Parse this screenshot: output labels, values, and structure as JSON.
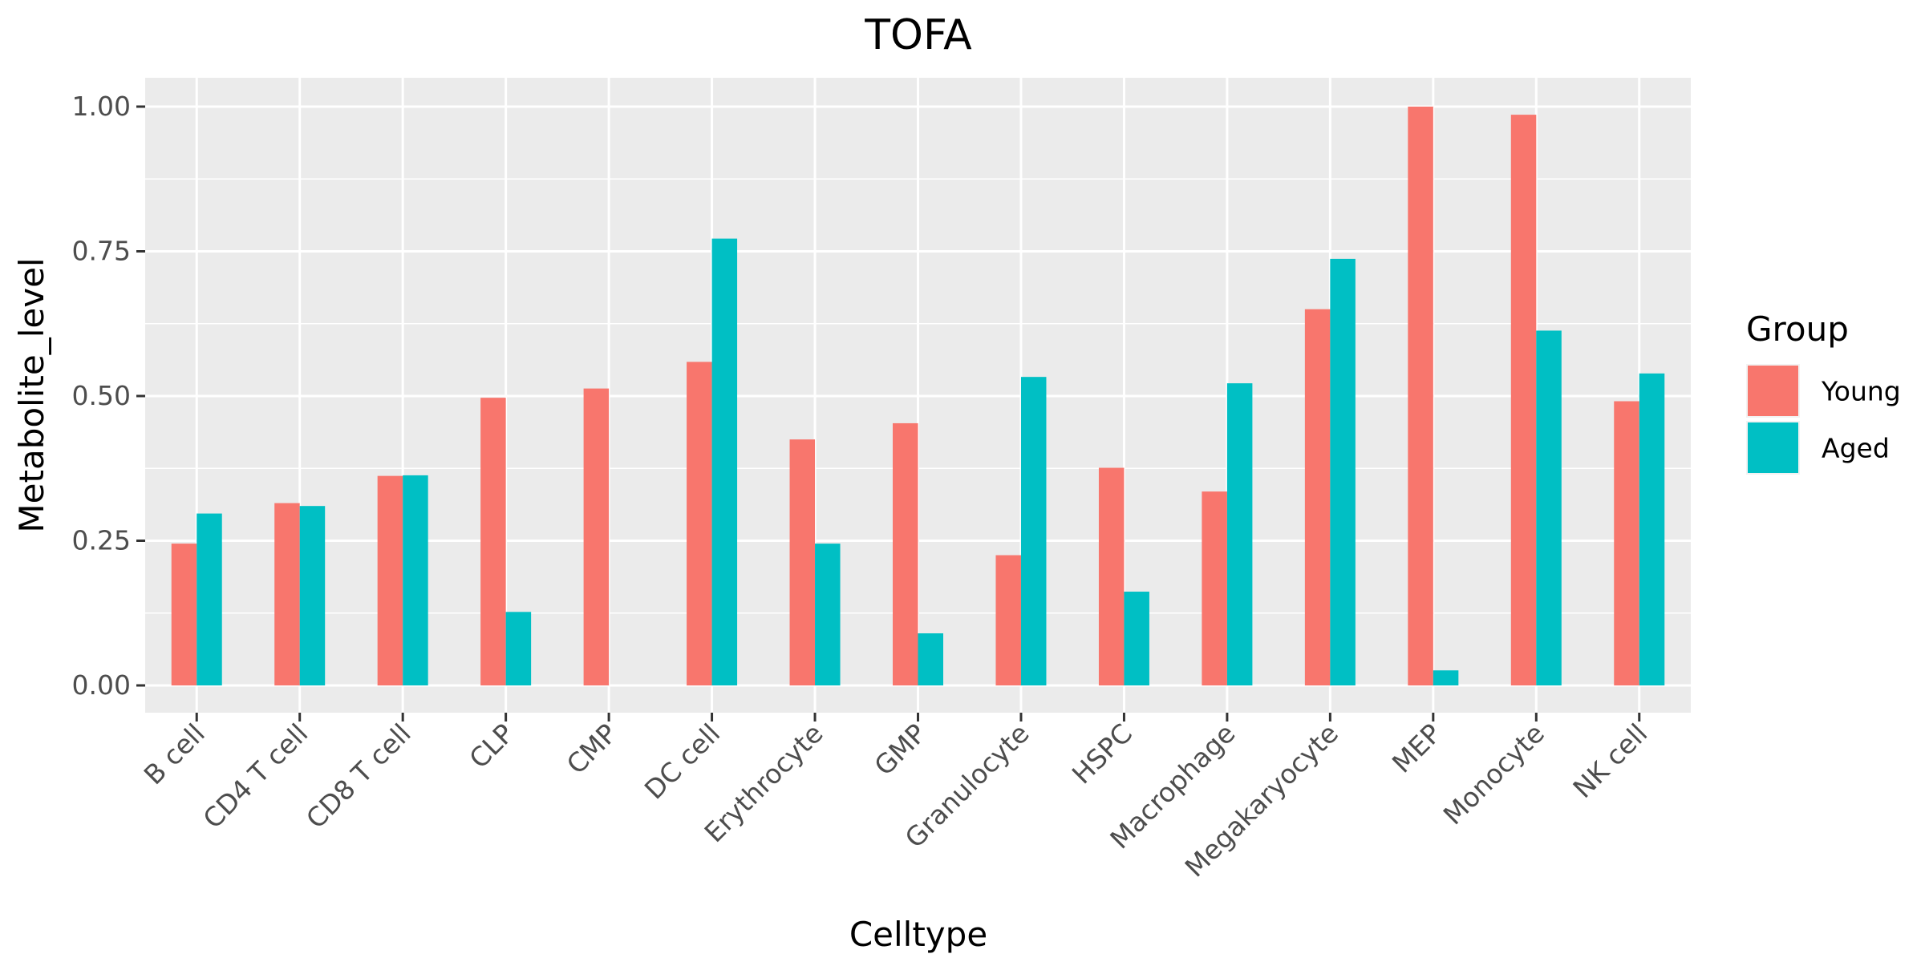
{
  "chart_data": {
    "type": "bar",
    "title": "TOFA",
    "xlabel": "Celltype",
    "ylabel": "Metabolite_level",
    "ylim": [
      -0.05,
      1.05
    ],
    "yticks": [
      "0.00",
      "0.25",
      "0.50",
      "0.75",
      "1.00"
    ],
    "ytick_values": [
      0,
      0.25,
      0.5,
      0.75,
      1.0
    ],
    "grid": true,
    "legend": {
      "title": "Group",
      "position": "right"
    },
    "categories": [
      "B cell",
      "CD4 T cell",
      "CD8 T cell",
      "CLP",
      "CMP",
      "DC cell",
      "Erythrocyte",
      "GMP",
      "Granulocyte",
      "HSPC",
      "Macrophage",
      "Megakaryocyte",
      "MEP",
      "Monocyte",
      "NK cell"
    ],
    "series": [
      {
        "name": "Young",
        "color": "#F8766D",
        "values": [
          0.245,
          0.315,
          0.362,
          0.497,
          0.513,
          0.559,
          0.425,
          0.453,
          0.225,
          0.376,
          0.335,
          0.65,
          1.0,
          0.986,
          0.491
        ]
      },
      {
        "name": "Aged",
        "color": "#00BFC4",
        "values": [
          0.297,
          0.31,
          0.363,
          0.127,
          0.0,
          0.772,
          0.245,
          0.09,
          0.533,
          0.162,
          0.522,
          0.737,
          0.026,
          0.613,
          0.539
        ]
      }
    ]
  },
  "colors": {
    "panel_background": "#EBEBEB",
    "grid_line": "#FFFFFF",
    "tick_mark": "#333333"
  }
}
